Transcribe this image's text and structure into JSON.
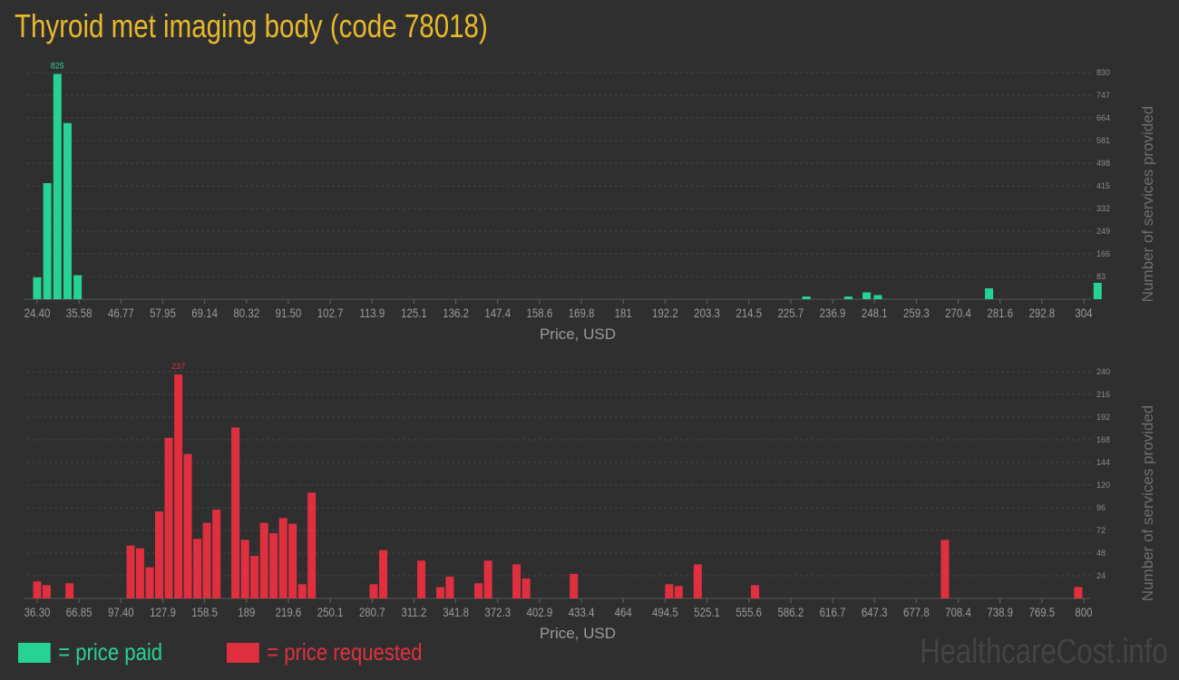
{
  "header": {
    "title": "Thyroid met imaging body (code 78018)"
  },
  "colors": {
    "paid": "#27d394",
    "requested": "#e03040",
    "title": "#e9b92b"
  },
  "legend": {
    "paid_label": "= price paid",
    "requested_label": "= price requested"
  },
  "watermark": "HealthcareCost.info",
  "chart_data": [
    {
      "type": "bar",
      "series_color": "paid",
      "xlabel": "Price, USD",
      "ylabel": "Number of services provided",
      "xlim": [
        24.4,
        304
      ],
      "ylim": [
        0,
        830
      ],
      "x_tick_labels": [
        "24.40",
        "35.58",
        "46.77",
        "57.95",
        "69.14",
        "80.32",
        "91.50",
        "102.7",
        "113.9",
        "125.1",
        "136.2",
        "147.4",
        "158.6",
        "169.8",
        "181",
        "192.2",
        "203.3",
        "214.5",
        "225.7",
        "236.9",
        "248.1",
        "259.3",
        "270.4",
        "281.6",
        "292.8",
        "304"
      ],
      "y_tick_labels": [
        "83",
        "166",
        "249",
        "332",
        "415",
        "498",
        "581",
        "664",
        "747",
        "830"
      ],
      "bars": [
        {
          "x": 24.4,
          "value": 80
        },
        {
          "x": 27.1,
          "value": 425
        },
        {
          "x": 29.8,
          "value": 825,
          "label": "825"
        },
        {
          "x": 32.5,
          "value": 645
        },
        {
          "x": 35.2,
          "value": 88
        },
        {
          "x": 229.9,
          "value": 10
        },
        {
          "x": 241.1,
          "value": 10
        },
        {
          "x": 246.0,
          "value": 25
        },
        {
          "x": 249.0,
          "value": 15
        },
        {
          "x": 278.7,
          "value": 40
        },
        {
          "x": 307.7,
          "value": 60
        }
      ]
    },
    {
      "type": "bar",
      "series_color": "requested",
      "xlabel": "Price, USD",
      "ylabel": "Number of services provided",
      "xlim": [
        36.3,
        800
      ],
      "ylim": [
        0,
        240
      ],
      "x_tick_labels": [
        "36.30",
        "66.85",
        "97.40",
        "127.9",
        "158.5",
        "189",
        "219.6",
        "250.1",
        "280.7",
        "311.2",
        "341.8",
        "372.3",
        "402.9",
        "433.4",
        "464",
        "494.5",
        "525.1",
        "555.6",
        "586.2",
        "616.7",
        "647.3",
        "677.8",
        "708.4",
        "738.9",
        "769.5",
        "800"
      ],
      "y_tick_labels": [
        "24",
        "48",
        "72",
        "96",
        "120",
        "144",
        "168",
        "192",
        "216",
        "240"
      ],
      "bars": [
        {
          "x": 36.3,
          "value": 18
        },
        {
          "x": 43.2,
          "value": 14
        },
        {
          "x": 59.9,
          "value": 16
        },
        {
          "x": 104.5,
          "value": 56
        },
        {
          "x": 111.4,
          "value": 53
        },
        {
          "x": 118.4,
          "value": 33
        },
        {
          "x": 125.3,
          "value": 92
        },
        {
          "x": 132.3,
          "value": 170
        },
        {
          "x": 139.3,
          "value": 237,
          "label": "237"
        },
        {
          "x": 146.2,
          "value": 153
        },
        {
          "x": 153.2,
          "value": 63
        },
        {
          "x": 160.1,
          "value": 80
        },
        {
          "x": 167.1,
          "value": 94
        },
        {
          "x": 181.0,
          "value": 181
        },
        {
          "x": 188.0,
          "value": 62
        },
        {
          "x": 194.9,
          "value": 45
        },
        {
          "x": 201.9,
          "value": 80
        },
        {
          "x": 208.8,
          "value": 69
        },
        {
          "x": 215.8,
          "value": 85
        },
        {
          "x": 222.7,
          "value": 79
        },
        {
          "x": 229.7,
          "value": 15
        },
        {
          "x": 236.6,
          "value": 112
        },
        {
          "x": 281.8,
          "value": 15
        },
        {
          "x": 288.8,
          "value": 51
        },
        {
          "x": 316.6,
          "value": 40
        },
        {
          "x": 330.5,
          "value": 12
        },
        {
          "x": 337.4,
          "value": 23
        },
        {
          "x": 358.3,
          "value": 16
        },
        {
          "x": 365.3,
          "value": 40
        },
        {
          "x": 386.1,
          "value": 36
        },
        {
          "x": 393.1,
          "value": 21
        },
        {
          "x": 427.9,
          "value": 26
        },
        {
          "x": 497.5,
          "value": 15
        },
        {
          "x": 504.4,
          "value": 13
        },
        {
          "x": 518.3,
          "value": 36
        },
        {
          "x": 560.1,
          "value": 14
        },
        {
          "x": 698.7,
          "value": 62
        },
        {
          "x": 796.0,
          "value": 12
        }
      ]
    }
  ]
}
